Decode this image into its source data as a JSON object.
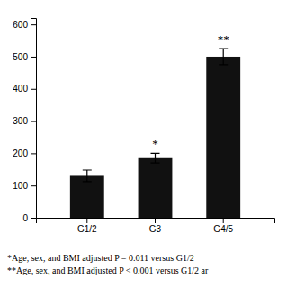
{
  "chart_data": {
    "type": "bar",
    "categories": [
      "G1/2",
      "G3",
      "G4/5"
    ],
    "values": [
      130,
      185,
      500
    ],
    "errors": [
      18,
      15,
      25
    ],
    "color": "#111111",
    "ylim": [
      0,
      620
    ],
    "yticks": [
      0,
      100,
      200,
      300,
      400,
      500,
      600
    ],
    "annotations": [
      {
        "text": "*",
        "category": "G3"
      },
      {
        "text": "**",
        "category": "G4/5"
      },
      {
        "text": "*Age, sex, and BMI adjusted P = 0.011 versus G1/2"
      },
      {
        "text": "**Age, sex, and BMI adjusted P < 0.001 versus G1/2 ar"
      }
    ]
  }
}
